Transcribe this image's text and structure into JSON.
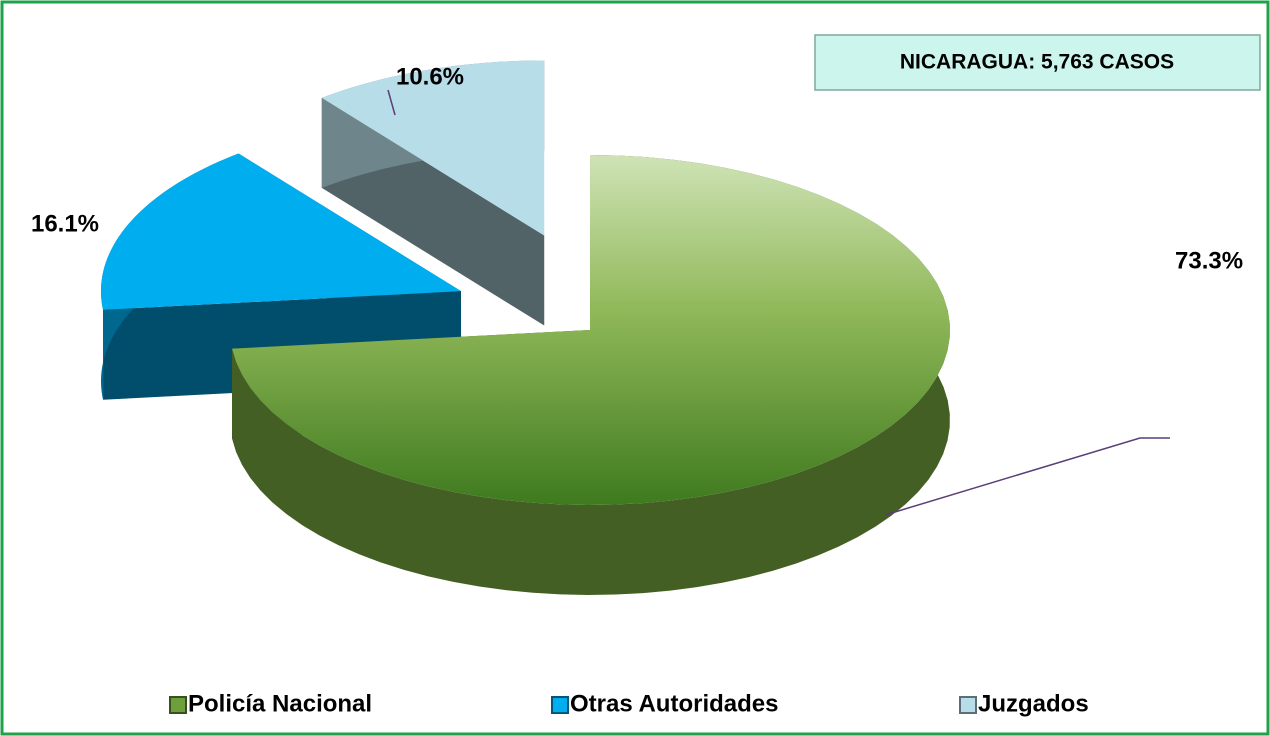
{
  "chart_data": {
    "type": "pie",
    "annotation": "NICARAGUA: 5,763 CASOS",
    "categories": [
      "Policía Nacional",
      "Otras Autoridades",
      "Juzgados"
    ],
    "values": [
      73.3,
      16.1,
      10.6
    ],
    "value_labels": [
      "73.3%",
      "16.1%",
      "10.6%"
    ],
    "colors": [
      "#6f9f3c",
      "#00aeef",
      "#b7dde8"
    ],
    "legend": "bottom"
  }
}
